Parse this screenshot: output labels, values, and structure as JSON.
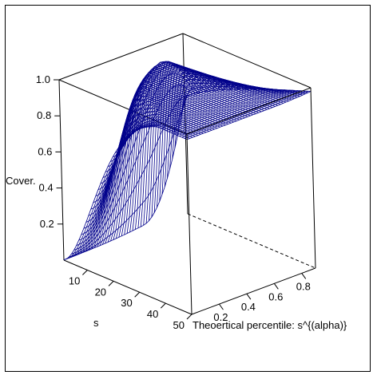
{
  "chart_data": {
    "type": "surface3d",
    "zlabel": "Cover.",
    "ylabel": "s",
    "xlabel": "Theoertical percentile: s^{(alpha)}",
    "z_ticks": [
      "0.2",
      "0.4",
      "0.6",
      "0.8",
      "1.0"
    ],
    "s_ticks": [
      "10",
      "20",
      "30",
      "40",
      "50"
    ],
    "alpha_ticks": [
      "0.2",
      "0.4",
      "0.6",
      "0.8"
    ],
    "zlim": [
      0,
      1
    ],
    "slim": [
      1,
      50
    ],
    "alphalim": [
      0,
      0.9
    ],
    "surface_color": "#00008b",
    "box_color": "#000000"
  }
}
